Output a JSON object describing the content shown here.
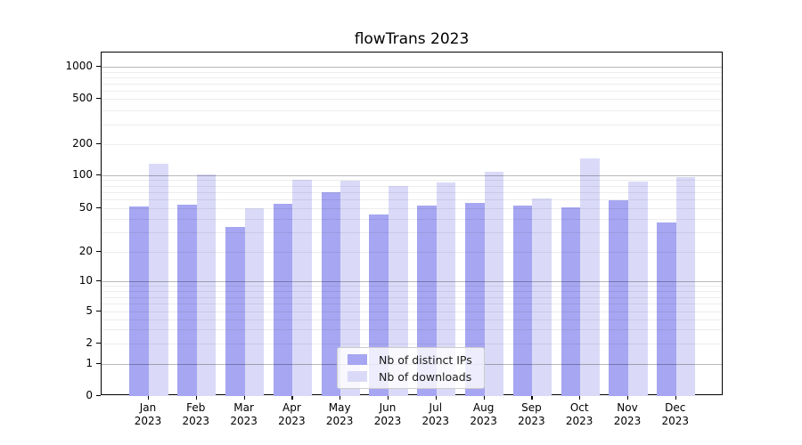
{
  "chart_data": {
    "type": "bar",
    "title": "flowTrans 2023",
    "categories": [
      "Jan",
      "Feb",
      "Mar",
      "Apr",
      "May",
      "Jun",
      "Jul",
      "Aug",
      "Sep",
      "Oct",
      "Nov",
      "Dec"
    ],
    "category_year": "2023",
    "series": [
      {
        "name": "Nb of distinct IPs",
        "color": "#a6a6f2",
        "values": [
          52,
          54,
          34,
          55,
          70,
          44,
          53,
          56,
          53,
          51,
          59,
          37
        ]
      },
      {
        "name": "Nb of downloads",
        "color": "#dadaf8",
        "values": [
          128,
          101,
          50,
          90,
          89,
          80,
          86,
          108,
          62,
          146,
          88,
          96
        ]
      }
    ],
    "xlabel": "",
    "ylabel": "",
    "yscale": "log-like",
    "y_ticks": [
      0,
      1,
      2,
      5,
      10,
      20,
      50,
      100,
      200,
      500,
      1000
    ],
    "ylim": [
      0,
      1350
    ],
    "grid": true,
    "legend_position": "lower center"
  }
}
